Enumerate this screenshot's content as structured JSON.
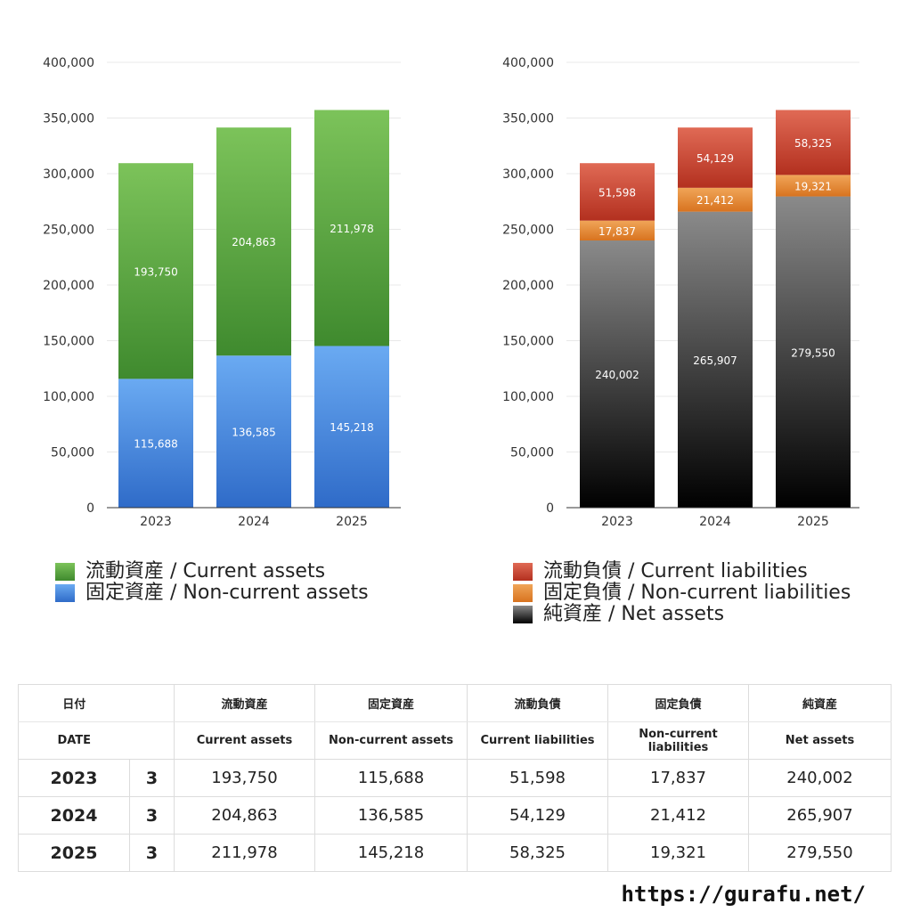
{
  "colors": {
    "current_assets": "#4e9f3d",
    "non_current_assets": "#4d8fe0",
    "current_liabilities": "#c9402c",
    "non_current_liabilities": "#e2862f",
    "net_assets": "#3a3a3a"
  },
  "chart_data": [
    {
      "type": "bar",
      "stacked": true,
      "categories": [
        "2023",
        "2024",
        "2025"
      ],
      "ylim": [
        0,
        400000
      ],
      "yticks": [
        0,
        50000,
        100000,
        150000,
        200000,
        250000,
        300000,
        350000,
        400000
      ],
      "ytick_labels": [
        "0",
        "50,000",
        "100,000",
        "150,000",
        "200,000",
        "250,000",
        "300,000",
        "350,000",
        "400,000"
      ],
      "series": [
        {
          "key": "non_current_assets",
          "values": [
            115688,
            136585,
            145218
          ],
          "labels": [
            "115,688",
            "136,585",
            "145,218"
          ]
        },
        {
          "key": "current_assets",
          "values": [
            193750,
            204863,
            211978
          ],
          "labels": [
            "193,750",
            "204,863",
            "211,978"
          ]
        }
      ],
      "legend": [
        {
          "key": "current_assets",
          "name": "流動資産 / Current assets"
        },
        {
          "key": "non_current_assets",
          "name": "固定資産 / Non-current assets"
        }
      ]
    },
    {
      "type": "bar",
      "stacked": true,
      "categories": [
        "2023",
        "2024",
        "2025"
      ],
      "ylim": [
        0,
        400000
      ],
      "yticks": [
        0,
        50000,
        100000,
        150000,
        200000,
        250000,
        300000,
        350000,
        400000
      ],
      "ytick_labels": [
        "0",
        "50,000",
        "100,000",
        "150,000",
        "200,000",
        "250,000",
        "300,000",
        "350,000",
        "400,000"
      ],
      "series": [
        {
          "key": "net_assets",
          "values": [
            240002,
            265907,
            279550
          ],
          "labels": [
            "240,002",
            "265,907",
            "279,550"
          ]
        },
        {
          "key": "non_current_liabilities",
          "values": [
            17837,
            21412,
            19321
          ],
          "labels": [
            "17,837",
            "21,412",
            "19,321"
          ]
        },
        {
          "key": "current_liabilities",
          "values": [
            51598,
            54129,
            58325
          ],
          "labels": [
            "51,598",
            "54,129",
            "58,325"
          ]
        }
      ],
      "legend": [
        {
          "key": "current_liabilities",
          "name": "流動負債 / Current liabilities"
        },
        {
          "key": "non_current_liabilities",
          "name": "固定負債 / Non-current liabilities"
        },
        {
          "key": "net_assets",
          "name": "純資産 / Net assets"
        }
      ]
    }
  ],
  "table": {
    "header_jp": [
      "日付",
      "流動資産",
      "固定資産",
      "流動負債",
      "固定負債",
      "純資産"
    ],
    "header_en": [
      "DATE",
      "Current assets",
      "Non-current assets",
      "Current liabilities",
      "Non-current liabilities",
      "Net assets"
    ],
    "rows": [
      {
        "year": "2023",
        "month": "3",
        "cells": [
          "193,750",
          "115,688",
          "51,598",
          "17,837",
          "240,002"
        ]
      },
      {
        "year": "2024",
        "month": "3",
        "cells": [
          "204,863",
          "136,585",
          "54,129",
          "21,412",
          "265,907"
        ]
      },
      {
        "year": "2025",
        "month": "3",
        "cells": [
          "211,978",
          "145,218",
          "58,325",
          "19,321",
          "279,550"
        ]
      }
    ]
  },
  "footer": {
    "url": "https://gurafu.net/"
  }
}
